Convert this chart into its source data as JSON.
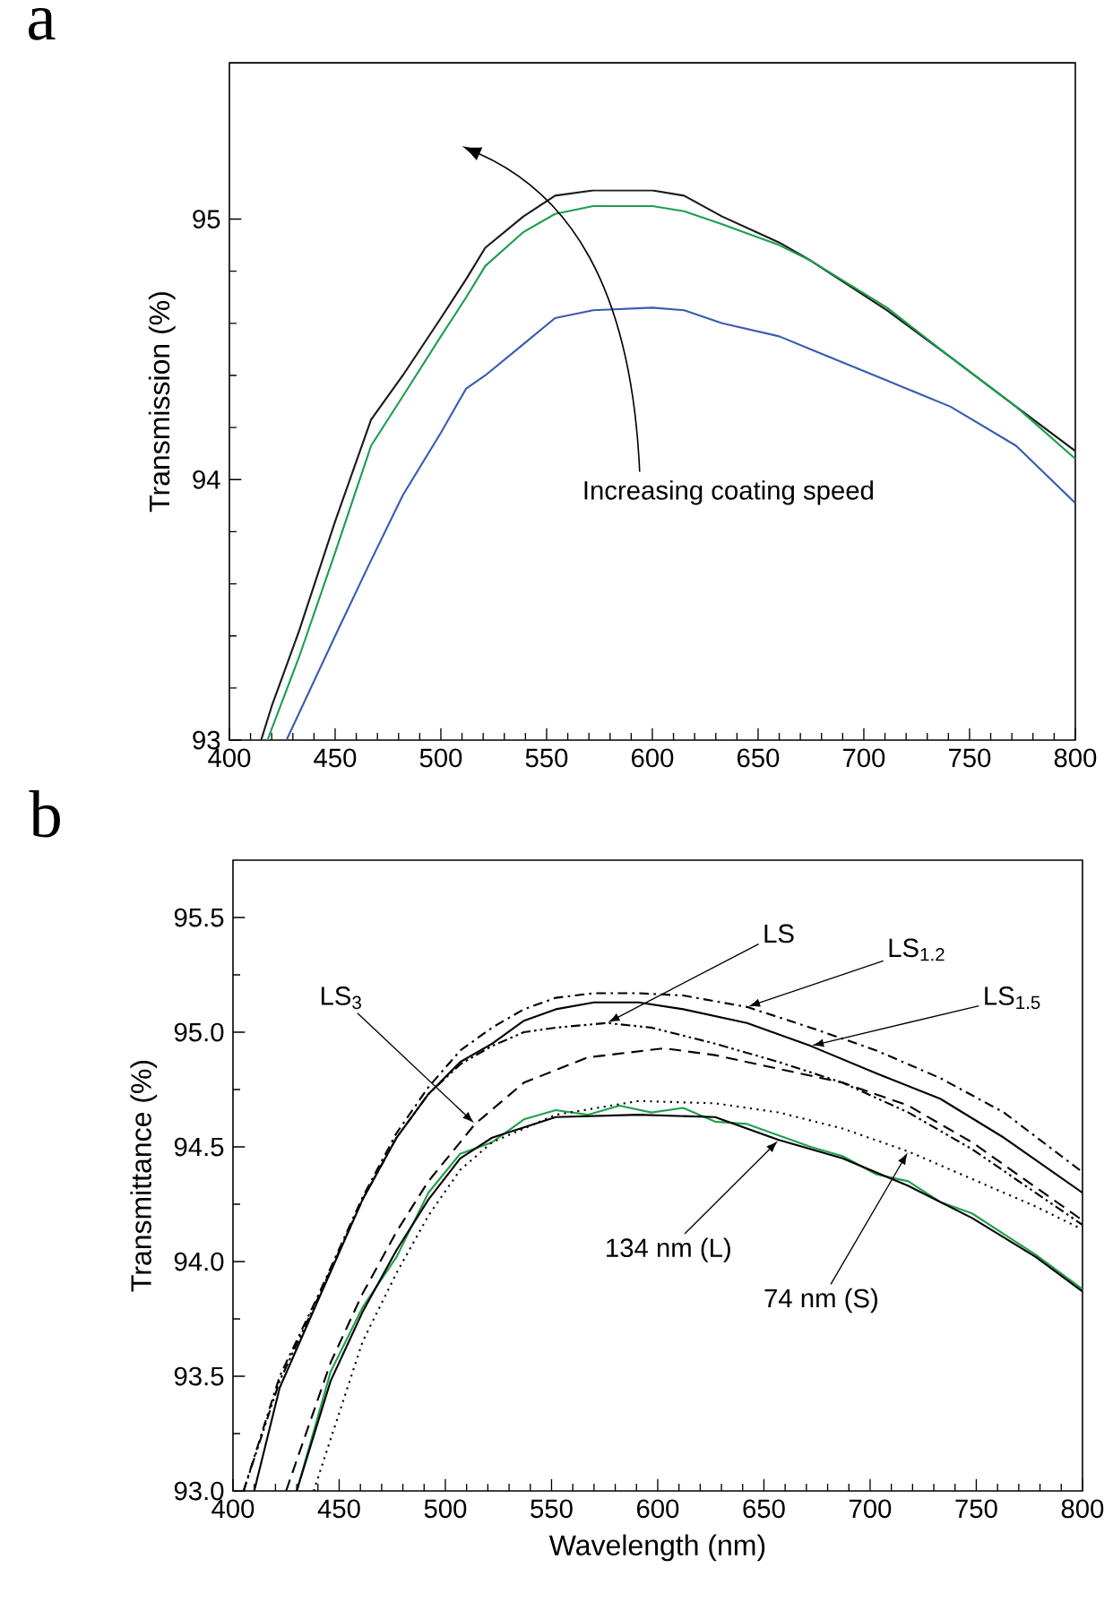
{
  "chart_data": [
    {
      "type": "line",
      "title": "a",
      "ylabel": "Transmission (%)",
      "xlim": [
        400,
        800
      ],
      "ylim": [
        93,
        95.6
      ],
      "xticks": [
        400,
        450,
        500,
        550,
        600,
        650,
        700,
        750,
        800
      ],
      "yticks": [
        93,
        94,
        95
      ],
      "annotations": [
        "Increasing coating speed"
      ],
      "series": [
        {
          "color": "#1a1a1a",
          "x": [
            415,
            420,
            433,
            450,
            467,
            482,
            500,
            512,
            521,
            539,
            554,
            572,
            600,
            615,
            633,
            660,
            675,
            711,
            741,
            772,
            800
          ],
          "values": [
            93.0,
            93.13,
            93.42,
            93.84,
            94.23,
            94.4,
            94.62,
            94.77,
            94.89,
            95.01,
            95.09,
            95.11,
            95.11,
            95.09,
            95.01,
            94.91,
            94.84,
            94.65,
            94.47,
            94.28,
            94.11
          ]
        },
        {
          "color": "#1e9e4e",
          "x": [
            418,
            433,
            450,
            467,
            482,
            500,
            512,
            521,
            539,
            554,
            572,
            600,
            615,
            633,
            660,
            675,
            711,
            741,
            772,
            800
          ],
          "values": [
            93.0,
            93.32,
            93.72,
            94.13,
            94.32,
            94.55,
            94.7,
            94.82,
            94.95,
            95.02,
            95.05,
            95.05,
            95.03,
            94.98,
            94.9,
            94.84,
            94.66,
            94.47,
            94.28,
            94.08
          ]
        },
        {
          "color": "#3a5bb0",
          "x": [
            427,
            450,
            467,
            482,
            500,
            512,
            521,
            539,
            554,
            572,
            600,
            615,
            633,
            660,
            675,
            711,
            741,
            772,
            800
          ],
          "values": [
            93.0,
            93.4,
            93.69,
            93.94,
            94.18,
            94.35,
            94.4,
            94.52,
            94.62,
            94.65,
            94.66,
            94.65,
            94.6,
            94.55,
            94.5,
            94.38,
            94.28,
            94.13,
            93.91
          ]
        }
      ]
    },
    {
      "type": "line",
      "title": "b",
      "xlabel": "Wavelength (nm)",
      "ylabel": "Transmittance (%)",
      "xlim": [
        400,
        800
      ],
      "ylim": [
        93,
        95.75
      ],
      "xticks": [
        400,
        450,
        500,
        550,
        600,
        650,
        700,
        750,
        800
      ],
      "yticks": [
        {
          "value": 93,
          "label": "93.0"
        },
        93.5,
        {
          "value": 94,
          "label": "94.0"
        },
        94.5,
        {
          "value": 95,
          "label": "95.0"
        },
        95.5
      ],
      "annotations": [
        {
          "text": "LS",
          "x": 576,
          "y": 95.04
        },
        {
          "text": "LS$_{1.2}$",
          "x": 642,
          "y": 95.11
        },
        {
          "text": "LS$_{1.5}$",
          "x": 672,
          "y": 94.94
        },
        {
          "text": "LS$_{3}$",
          "x": 514,
          "y": 94.6
        },
        {
          "text": "134 nm (L)",
          "x": 657,
          "y": 94.53
        },
        {
          "text": "74 nm (S)",
          "x": 718,
          "y": 94.48
        }
      ],
      "series": [
        {
          "color": "#22a04a",
          "line_style": "solid",
          "x": [
            430,
            446,
            461,
            477,
            492,
            507,
            522,
            537,
            552,
            567,
            582,
            597,
            612,
            627,
            642,
            657,
            672,
            687,
            703,
            718,
            733,
            748,
            763,
            778,
            800
          ],
          "values": [
            93.0,
            93.52,
            93.8,
            94.02,
            94.3,
            94.47,
            94.52,
            94.62,
            94.66,
            94.64,
            94.68,
            94.65,
            94.67,
            94.61,
            94.6,
            94.55,
            94.5,
            94.46,
            94.38,
            94.35,
            94.26,
            94.21,
            94.12,
            94.03,
            93.88
          ]
        },
        {
          "color": "#000000",
          "line_style": "solid",
          "x": [
            430,
            446,
            461,
            477,
            492,
            507,
            522,
            552,
            591,
            627,
            657,
            687,
            718,
            748,
            778,
            800
          ],
          "values": [
            93.0,
            93.48,
            93.78,
            94.05,
            94.27,
            94.45,
            94.54,
            94.63,
            94.64,
            94.63,
            94.53,
            94.45,
            94.33,
            94.19,
            94.02,
            93.87
          ]
        },
        {
          "color": "#000000",
          "line_style": "dotted",
          "x": [
            438,
            461,
            477,
            492,
            507,
            522,
            552,
            591,
            627,
            657,
            687,
            718,
            748,
            778,
            800
          ],
          "values": [
            93.0,
            93.65,
            93.95,
            94.2,
            94.4,
            94.52,
            94.64,
            94.7,
            94.69,
            94.65,
            94.58,
            94.48,
            94.36,
            94.24,
            94.14
          ]
        },
        {
          "color": "#000000",
          "line_style": "dashed",
          "x": [
            425,
            446,
            461,
            477,
            492,
            514,
            537,
            567,
            603,
            627,
            657,
            687,
            718,
            748,
            800
          ],
          "values": [
            93.0,
            93.56,
            93.86,
            94.13,
            94.35,
            94.6,
            94.78,
            94.89,
            94.93,
            94.9,
            94.84,
            94.78,
            94.68,
            94.52,
            94.18
          ]
        },
        {
          "color": "#000000",
          "line_style": "dashdotdot",
          "x": [
            405,
            422,
            440,
            461,
            477,
            492,
            507,
            522,
            537,
            552,
            576,
            597,
            627,
            657,
            687,
            718,
            748,
            800
          ],
          "values": [
            93.0,
            93.48,
            93.84,
            94.27,
            94.54,
            94.73,
            94.86,
            94.94,
            95.0,
            95.02,
            95.04,
            95.02,
            94.95,
            94.87,
            94.78,
            94.65,
            94.49,
            94.16
          ]
        },
        {
          "color": "#000000",
          "line_style": "solid",
          "x": [
            410,
            422,
            440,
            461,
            477,
            492,
            507,
            522,
            537,
            552,
            570,
            591,
            612,
            642,
            672,
            703,
            733,
            763,
            800
          ],
          "values": [
            93.0,
            93.45,
            93.83,
            94.27,
            94.54,
            94.73,
            94.87,
            94.95,
            95.05,
            95.1,
            95.13,
            95.13,
            95.1,
            95.04,
            94.94,
            94.82,
            94.71,
            94.54,
            94.3
          ]
        },
        {
          "color": "#000000",
          "line_style": "dashdot",
          "x": [
            405,
            422,
            440,
            461,
            477,
            492,
            507,
            522,
            537,
            552,
            570,
            591,
            612,
            642,
            672,
            703,
            733,
            763,
            800
          ],
          "values": [
            93.0,
            93.5,
            93.85,
            94.28,
            94.56,
            94.76,
            94.92,
            95.02,
            95.1,
            95.15,
            95.17,
            95.17,
            95.16,
            95.11,
            95.02,
            94.92,
            94.8,
            94.65,
            94.39
          ]
        }
      ]
    }
  ]
}
